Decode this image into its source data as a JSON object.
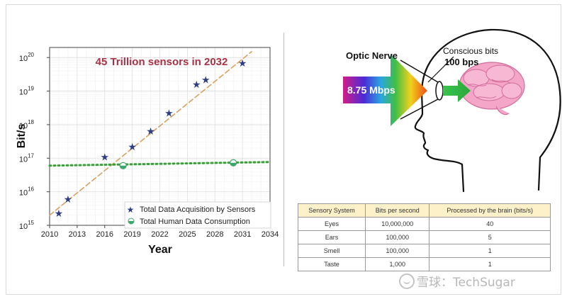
{
  "chart_data": {
    "type": "scatter",
    "title": "45 Trillion sensors in 2032",
    "xlabel": "Year",
    "ylabel": "Bit/s",
    "xlim": [
      2010,
      2034
    ],
    "ylim_log10": [
      15,
      20.3
    ],
    "y_scale": "log",
    "x_ticks": [
      "2010",
      "2013",
      "2016",
      "2019",
      "2022",
      "2025",
      "2028",
      "2031",
      "2034"
    ],
    "y_ticks": [
      {
        "base": "10",
        "exp": "15"
      },
      {
        "base": "10",
        "exp": "16"
      },
      {
        "base": "10",
        "exp": "17"
      },
      {
        "base": "10",
        "exp": "18"
      },
      {
        "base": "10",
        "exp": "19"
      },
      {
        "base": "10",
        "exp": "20"
      }
    ],
    "grid": true,
    "legend_position": "bottom-right",
    "series": [
      {
        "name": "Total Data Acquisition by Sensors",
        "marker": "star",
        "color": "#2e3d82",
        "points": [
          {
            "x": 2011,
            "y": 2300000000000000.0
          },
          {
            "x": 2012,
            "y": 6000000000000000.0
          },
          {
            "x": 2016,
            "y": 1.1e+17
          },
          {
            "x": 2019,
            "y": 2.2e+17
          },
          {
            "x": 2021,
            "y": 6.5e+17
          },
          {
            "x": 2023,
            "y": 2.2e+18
          },
          {
            "x": 2026,
            "y": 1.6e+19
          },
          {
            "x": 2027,
            "y": 2.2e+19
          },
          {
            "x": 2031,
            "y": 6.8e+19
          }
        ],
        "trend": {
          "color": "#d9a060",
          "style": "dashed",
          "from": [
            2010,
            2000000000000000.0
          ],
          "to": [
            2032,
            1.5e+20
          ]
        }
      },
      {
        "name": "Total Human Data Consumption",
        "marker": "half-circle",
        "color": "#3aa86a",
        "points": [
          {
            "x": 2018,
            "y": 6e+16
          },
          {
            "x": 2030,
            "y": 7.3e+16
          }
        ],
        "trend": {
          "color": "#3a9e3a",
          "style": "dotted",
          "from": [
            2010,
            6e+16
          ],
          "to": [
            2034,
            7.7e+16
          ]
        }
      }
    ]
  },
  "illustration": {
    "optic_label": "Optic Nerve",
    "rate_label": "8.75 Mbps",
    "conscious_label": "Conscious bits",
    "conscious_value": "100 bps"
  },
  "table": {
    "headers": [
      "Sensory System",
      "Bits per second",
      "Processed by the brain (bits/s)"
    ],
    "rows": [
      [
        "Eyes",
        "10,000,000",
        "40"
      ],
      [
        "Ears",
        "100,000",
        "5"
      ],
      [
        "Smell",
        "100,000",
        "1"
      ],
      [
        "Taste",
        "1,000",
        "1"
      ]
    ]
  },
  "watermark": "雪球：TechSugar"
}
